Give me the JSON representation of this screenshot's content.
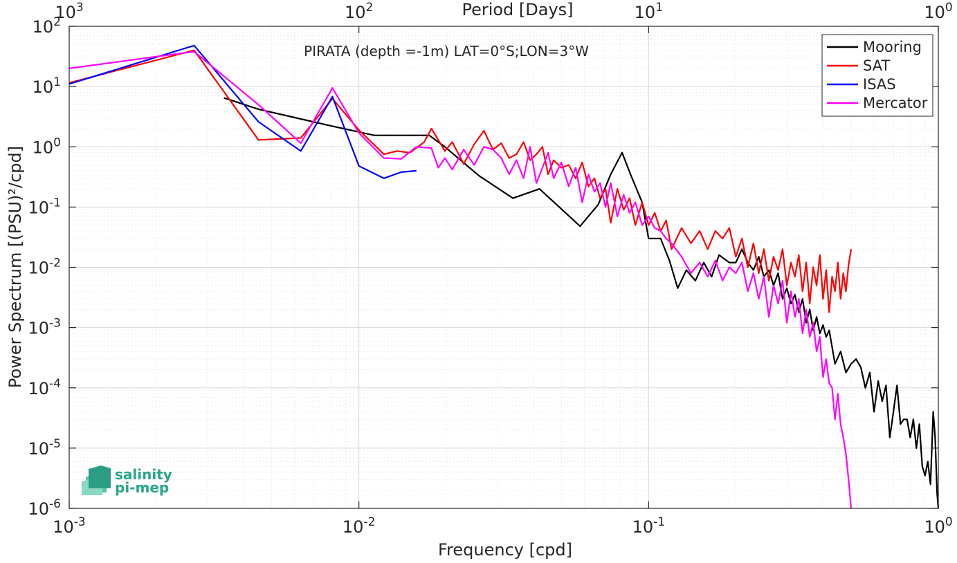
{
  "chart_data": {
    "type": "line",
    "title": "PIRATA (depth =-1m) LAT=0°S;LON=3°W",
    "xlabel": "Frequency [cpd]",
    "ylabel": "Power Spectrum [(PSU)²/cpd]",
    "top_xlabel": "Period [Days]",
    "xscale": "log",
    "yscale": "log",
    "xlim": [
      0.001,
      1
    ],
    "ylim": [
      1e-06,
      100
    ],
    "grid": true,
    "legend_position": "top-right",
    "x_ticks": [
      {
        "value": 0.001,
        "base": "10",
        "exp": "-3"
      },
      {
        "value": 0.01,
        "base": "10",
        "exp": "-2"
      },
      {
        "value": 0.1,
        "base": "10",
        "exp": "-1"
      },
      {
        "value": 1,
        "base": "10",
        "exp": "0"
      }
    ],
    "top_x_ticks": [
      {
        "value": 0.001,
        "base": "10",
        "exp": "3"
      },
      {
        "value": 0.01,
        "base": "10",
        "exp": "2"
      },
      {
        "value": 0.1,
        "base": "10",
        "exp": "1"
      },
      {
        "value": 1,
        "base": "10",
        "exp": "0"
      }
    ],
    "y_ticks": [
      {
        "value": 1e-06,
        "base": "10",
        "exp": "-6"
      },
      {
        "value": 1e-05,
        "base": "10",
        "exp": "-5"
      },
      {
        "value": 0.0001,
        "base": "10",
        "exp": "-4"
      },
      {
        "value": 0.001,
        "base": "10",
        "exp": "-3"
      },
      {
        "value": 0.01,
        "base": "10",
        "exp": "-2"
      },
      {
        "value": 0.1,
        "base": "10",
        "exp": "-1"
      },
      {
        "value": 1,
        "base": "10",
        "exp": "0"
      },
      {
        "value": 10,
        "base": "10",
        "exp": "1"
      },
      {
        "value": 100,
        "base": "10",
        "exp": "2"
      }
    ],
    "series": [
      {
        "name": "Mooring",
        "color": "#000000",
        "points": [
          [
            0.00342,
            6.5
          ],
          [
            0.0045,
            4.2
          ],
          [
            0.0063,
            2.9
          ],
          [
            0.0081,
            2.2
          ],
          [
            0.0113,
            1.55
          ],
          [
            0.014,
            1.55
          ],
          [
            0.0175,
            1.55
          ],
          [
            0.0198,
            1.0
          ],
          [
            0.026,
            0.33
          ],
          [
            0.034,
            0.14
          ],
          [
            0.042,
            0.2
          ],
          [
            0.058,
            0.048
          ],
          [
            0.067,
            0.11
          ],
          [
            0.074,
            0.35
          ],
          [
            0.081,
            0.8
          ],
          [
            0.087,
            0.33
          ],
          [
            0.095,
            0.12
          ],
          [
            0.1,
            0.03
          ],
          [
            0.11,
            0.03
          ],
          [
            0.118,
            0.013
          ],
          [
            0.126,
            0.0045
          ],
          [
            0.135,
            0.009
          ],
          [
            0.145,
            0.006
          ],
          [
            0.155,
            0.012
          ],
          [
            0.165,
            0.007
          ],
          [
            0.175,
            0.016
          ],
          [
            0.19,
            0.012
          ],
          [
            0.2,
            0.012
          ],
          [
            0.21,
            0.02
          ],
          [
            0.22,
            0.012
          ],
          [
            0.23,
            0.009
          ],
          [
            0.24,
            0.015
          ],
          [
            0.25,
            0.007
          ],
          [
            0.26,
            0.009
          ],
          [
            0.27,
            0.005
          ],
          [
            0.28,
            0.008
          ],
          [
            0.29,
            0.003
          ],
          [
            0.3,
            0.0045
          ],
          [
            0.31,
            0.0025
          ],
          [
            0.32,
            0.0035
          ],
          [
            0.33,
            0.0018
          ],
          [
            0.34,
            0.003
          ],
          [
            0.35,
            0.0012
          ],
          [
            0.36,
            0.002
          ],
          [
            0.37,
            0.0009
          ],
          [
            0.38,
            0.0015
          ],
          [
            0.39,
            0.0008
          ],
          [
            0.4,
            0.0011
          ],
          [
            0.41,
            0.0007
          ],
          [
            0.42,
            0.0009
          ],
          [
            0.44,
            0.00025
          ],
          [
            0.46,
            0.0004
          ],
          [
            0.48,
            0.00018
          ],
          [
            0.5,
            0.00025
          ],
          [
            0.52,
            0.0003
          ],
          [
            0.54,
            0.00022
          ],
          [
            0.56,
            0.0001
          ],
          [
            0.58,
            0.00018
          ],
          [
            0.6,
            4e-05
          ],
          [
            0.62,
            0.00013
          ],
          [
            0.64,
            6e-05
          ],
          [
            0.66,
            0.00011
          ],
          [
            0.68,
            1.5e-05
          ],
          [
            0.7,
            4e-05
          ],
          [
            0.72,
            0.00011
          ],
          [
            0.74,
            2.5e-05
          ],
          [
            0.76,
            3e-05
          ],
          [
            0.78,
            3e-05
          ],
          [
            0.8,
            1.5e-05
          ],
          [
            0.82,
            3e-05
          ],
          [
            0.84,
            1e-05
          ],
          [
            0.86,
            2.5e-05
          ],
          [
            0.88,
            5e-06
          ],
          [
            0.9,
            3.5e-06
          ],
          [
            0.92,
            6e-06
          ],
          [
            0.94,
            2.5e-06
          ],
          [
            0.96,
            4e-05
          ],
          [
            0.975,
            1.5e-05
          ],
          [
            0.99,
            1.8e-06
          ],
          [
            1.0,
            1e-06
          ]
        ]
      },
      {
        "name": "SAT",
        "color": "#ff0000",
        "points": [
          [
            0.001,
            11.5
          ],
          [
            0.0027,
            40
          ],
          [
            0.0045,
            1.3
          ],
          [
            0.0063,
            1.4
          ],
          [
            0.0081,
            6.3
          ],
          [
            0.01,
            1.9
          ],
          [
            0.0122,
            0.75
          ],
          [
            0.0135,
            0.85
          ],
          [
            0.015,
            0.8
          ],
          [
            0.0168,
            1.2
          ],
          [
            0.0178,
            2.0
          ],
          [
            0.0188,
            1.3
          ],
          [
            0.0198,
            0.85
          ],
          [
            0.021,
            1.2
          ],
          [
            0.023,
            0.52
          ],
          [
            0.025,
            1.1
          ],
          [
            0.027,
            1.85
          ],
          [
            0.029,
            0.9
          ],
          [
            0.031,
            1.15
          ],
          [
            0.033,
            0.65
          ],
          [
            0.035,
            0.75
          ],
          [
            0.037,
            1.2
          ],
          [
            0.039,
            0.6
          ],
          [
            0.041,
            0.75
          ],
          [
            0.043,
            1.0
          ],
          [
            0.045,
            0.35
          ],
          [
            0.047,
            0.6
          ],
          [
            0.05,
            0.45
          ],
          [
            0.053,
            0.5
          ],
          [
            0.056,
            0.3
          ],
          [
            0.059,
            0.55
          ],
          [
            0.062,
            0.22
          ],
          [
            0.065,
            0.3
          ],
          [
            0.068,
            0.14
          ],
          [
            0.071,
            0.2
          ],
          [
            0.074,
            0.055
          ],
          [
            0.078,
            0.2
          ],
          [
            0.082,
            0.09
          ],
          [
            0.086,
            0.14
          ],
          [
            0.09,
            0.05
          ],
          [
            0.095,
            0.12
          ],
          [
            0.1,
            0.05
          ],
          [
            0.105,
            0.08
          ],
          [
            0.11,
            0.04
          ],
          [
            0.115,
            0.06
          ],
          [
            0.12,
            0.02
          ],
          [
            0.13,
            0.045
          ],
          [
            0.14,
            0.025
          ],
          [
            0.15,
            0.04
          ],
          [
            0.16,
            0.02
          ],
          [
            0.17,
            0.04
          ],
          [
            0.18,
            0.03
          ],
          [
            0.19,
            0.045
          ],
          [
            0.2,
            0.015
          ],
          [
            0.21,
            0.03
          ],
          [
            0.22,
            0.01
          ],
          [
            0.23,
            0.025
          ],
          [
            0.24,
            0.008
          ],
          [
            0.25,
            0.02
          ],
          [
            0.26,
            0.006
          ],
          [
            0.27,
            0.015
          ],
          [
            0.28,
            0.009
          ],
          [
            0.29,
            0.02
          ],
          [
            0.3,
            0.005
          ],
          [
            0.31,
            0.012
          ],
          [
            0.32,
            0.007
          ],
          [
            0.33,
            0.016
          ],
          [
            0.34,
            0.004
          ],
          [
            0.35,
            0.012
          ],
          [
            0.36,
            0.0025
          ],
          [
            0.37,
            0.01
          ],
          [
            0.38,
            0.005
          ],
          [
            0.39,
            0.016
          ],
          [
            0.4,
            0.003
          ],
          [
            0.41,
            0.009
          ],
          [
            0.42,
            0.0018
          ],
          [
            0.43,
            0.007
          ],
          [
            0.44,
            0.004
          ],
          [
            0.45,
            0.012
          ],
          [
            0.46,
            0.003
          ],
          [
            0.47,
            0.008
          ],
          [
            0.48,
            0.004
          ],
          [
            0.49,
            0.011
          ],
          [
            0.5,
            0.02
          ]
        ]
      },
      {
        "name": "ISAS",
        "color": "#0000ff",
        "points": [
          [
            0.001,
            11
          ],
          [
            0.0027,
            48
          ],
          [
            0.0045,
            2.6
          ],
          [
            0.0063,
            0.85
          ],
          [
            0.0081,
            6.8
          ],
          [
            0.01,
            0.48
          ],
          [
            0.0122,
            0.3
          ],
          [
            0.014,
            0.38
          ],
          [
            0.0158,
            0.4
          ]
        ]
      },
      {
        "name": "Mercator",
        "color": "#ff00ff",
        "points": [
          [
            0.001,
            20
          ],
          [
            0.0027,
            38
          ],
          [
            0.0045,
            5.0
          ],
          [
            0.0063,
            1.15
          ],
          [
            0.0081,
            9.5
          ],
          [
            0.01,
            1.7
          ],
          [
            0.0122,
            0.65
          ],
          [
            0.014,
            0.63
          ],
          [
            0.0158,
            1.0
          ],
          [
            0.0178,
            0.95
          ],
          [
            0.0188,
            0.45
          ],
          [
            0.0198,
            0.65
          ],
          [
            0.021,
            0.42
          ],
          [
            0.023,
            0.9
          ],
          [
            0.025,
            0.5
          ],
          [
            0.027,
            1.0
          ],
          [
            0.029,
            0.9
          ],
          [
            0.031,
            0.65
          ],
          [
            0.033,
            0.35
          ],
          [
            0.035,
            0.6
          ],
          [
            0.037,
            0.3
          ],
          [
            0.039,
            1.0
          ],
          [
            0.041,
            0.25
          ],
          [
            0.043,
            0.45
          ],
          [
            0.045,
            0.8
          ],
          [
            0.047,
            0.3
          ],
          [
            0.05,
            0.55
          ],
          [
            0.053,
            0.22
          ],
          [
            0.056,
            0.45
          ],
          [
            0.059,
            0.12
          ],
          [
            0.062,
            0.35
          ],
          [
            0.065,
            0.18
          ],
          [
            0.068,
            0.25
          ],
          [
            0.071,
            0.1
          ],
          [
            0.074,
            0.25
          ],
          [
            0.078,
            0.07
          ],
          [
            0.082,
            0.16
          ],
          [
            0.086,
            0.08
          ],
          [
            0.09,
            0.12
          ],
          [
            0.095,
            0.05
          ],
          [
            0.1,
            0.07
          ],
          [
            0.105,
            0.045
          ],
          [
            0.11,
            0.04
          ],
          [
            0.115,
            0.03
          ],
          [
            0.12,
            0.025
          ],
          [
            0.13,
            0.015
          ],
          [
            0.14,
            0.008
          ],
          [
            0.15,
            0.012
          ],
          [
            0.16,
            0.007
          ],
          [
            0.17,
            0.013
          ],
          [
            0.18,
            0.006
          ],
          [
            0.19,
            0.01
          ],
          [
            0.2,
            0.008
          ],
          [
            0.21,
            0.012
          ],
          [
            0.22,
            0.004
          ],
          [
            0.23,
            0.008
          ],
          [
            0.24,
            0.003
          ],
          [
            0.25,
            0.007
          ],
          [
            0.26,
            0.0015
          ],
          [
            0.27,
            0.005
          ],
          [
            0.28,
            0.0025
          ],
          [
            0.29,
            0.006
          ],
          [
            0.3,
            0.0012
          ],
          [
            0.31,
            0.004
          ],
          [
            0.32,
            0.0015
          ],
          [
            0.33,
            0.003
          ],
          [
            0.34,
            0.0008
          ],
          [
            0.35,
            0.002
          ],
          [
            0.36,
            0.0007
          ],
          [
            0.37,
            0.0012
          ],
          [
            0.38,
            0.0004
          ],
          [
            0.39,
            0.0007
          ],
          [
            0.4,
            0.00015
          ],
          [
            0.41,
            0.0003
          ],
          [
            0.42,
            0.00012
          ],
          [
            0.43,
            0.0001
          ],
          [
            0.44,
            3e-05
          ],
          [
            0.45,
            8e-05
          ],
          [
            0.46,
            2.5e-05
          ],
          [
            0.47,
            1.5e-05
          ],
          [
            0.48,
            8e-06
          ],
          [
            0.49,
            3e-06
          ],
          [
            0.5,
            1e-06
          ]
        ]
      }
    ]
  },
  "logo": {
    "line1": "salinity",
    "line2": "pi-mep"
  }
}
